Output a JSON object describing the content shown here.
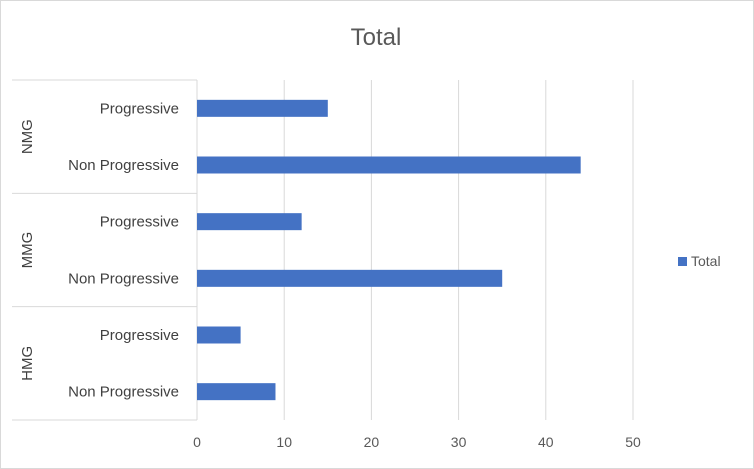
{
  "chart_data": {
    "type": "bar",
    "orientation": "horizontal",
    "title": "Total",
    "xlabel": "",
    "ylabel": "",
    "xlim": [
      0,
      55
    ],
    "xticks": [
      0,
      10,
      20,
      30,
      40,
      50
    ],
    "grid": "vertical",
    "legend_position": "right",
    "bar_color": "#4472C4",
    "groups": [
      {
        "name": "NMG",
        "categories": [
          {
            "label": "Progressive",
            "value": 15
          },
          {
            "label": "Non Progressive",
            "value": 44
          }
        ]
      },
      {
        "name": "MMG",
        "categories": [
          {
            "label": "Progressive",
            "value": 12
          },
          {
            "label": "Non Progressive",
            "value": 35
          }
        ]
      },
      {
        "name": "HMG",
        "categories": [
          {
            "label": "Progressive",
            "value": 5
          },
          {
            "label": "Non Progressive",
            "value": 9
          }
        ]
      }
    ],
    "series": [
      {
        "name": "Total"
      }
    ]
  }
}
